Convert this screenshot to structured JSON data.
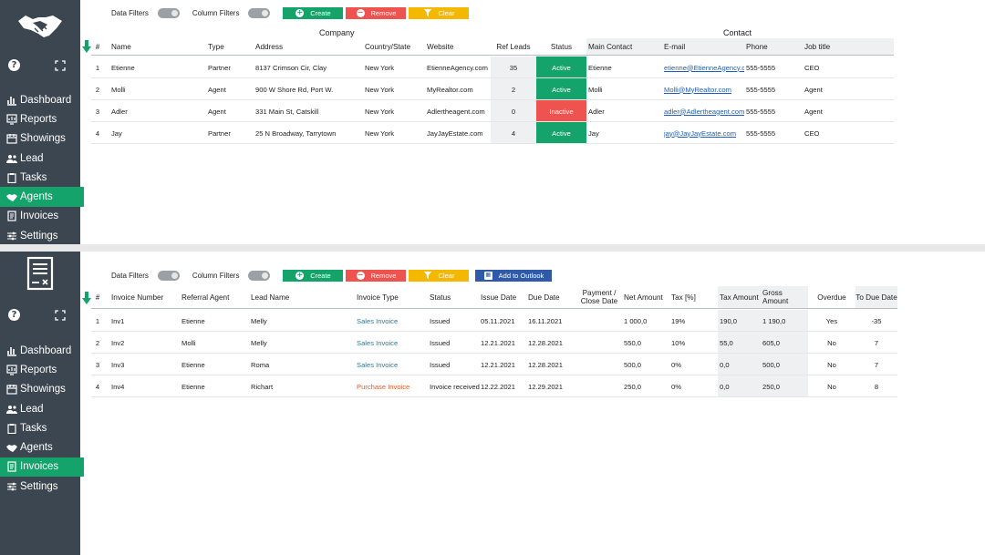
{
  "nav_items": [
    "Dashboard",
    "Reports",
    "Showings",
    "Lead",
    "Tasks",
    "Agents",
    "Invoices",
    "Settings"
  ],
  "icons": {
    "logo_top": "handshake-icon",
    "logo_bottom": "invoice-document-icon",
    "help": "help-icon",
    "expand": "expand-icon",
    "create": "plus-circle-icon",
    "remove": "minus-circle-icon",
    "clear": "filter-icon",
    "outlook": "calendar-icon",
    "scroll_down": "down-arrow-icon"
  },
  "help_glyph": "?",
  "colors": {
    "sidebar": "#3c4650",
    "active_nav": "#13a36b",
    "create": "#13a36b",
    "remove": "#ef5350",
    "clear": "#f5b800",
    "outlook": "#2f5aa8",
    "active_status": "#13a36b",
    "inactive_status": "#ef5350"
  },
  "toolbar": {
    "data_filters": "Data Filters",
    "column_filters": "Column Filters",
    "create": "Create",
    "remove": "Remove",
    "clear": "Clear",
    "add_outlook": "Add to Outlook"
  },
  "agents": {
    "active_nav": "Agents",
    "group_company": "Company",
    "group_contact": "Contact",
    "headers": [
      "#",
      "Name",
      "Type",
      "Address",
      "Country/State",
      "Website",
      "Ref Leads",
      "Status",
      "Main Contact",
      "E-mail",
      "Phone",
      "Job title"
    ],
    "rows": [
      [
        "1",
        "Etienne",
        "Partner",
        "8137 Crimson Cir, Clay",
        "New York",
        "EtienneAgency.com",
        "35",
        "Active",
        "Etienne",
        "etienne@EtienneAgency.co",
        "555-5555",
        "CEO"
      ],
      [
        "2",
        "Molli",
        "Agent",
        "900 W Shore Rd, Port W.",
        "New York",
        "MyRealtor.com",
        "2",
        "Active",
        "Molli",
        "Molli@MyRealtor.com",
        "555-5555",
        "Agent"
      ],
      [
        "3",
        "Adler",
        "Agent",
        "331 Main St, Catskill",
        "New York",
        "Adlertheagent.com",
        "0",
        "Inactive",
        "Adler",
        "adler@Adlertheagent.com",
        "555-5555",
        "Agent"
      ],
      [
        "4",
        "Jay",
        "Partner",
        "25 N Broadway, Tarrytown",
        "New York",
        "JayJayEstate.com",
        "4",
        "Active",
        "Jay",
        "jay@JayJayEstate.com",
        "555-5555",
        "CEO"
      ]
    ]
  },
  "invoices": {
    "active_nav": "Invoices",
    "headers": [
      "#",
      "Invoice Number",
      "Referral Agent",
      "Lead Name",
      "Invoice Type",
      "Status",
      "Issue Date",
      "Due Date",
      "Payment / Close Date",
      "Net Amount",
      "Tax [%]",
      "Tax Amount",
      "Gross Amount",
      "Overdue",
      "To Due Date"
    ],
    "rows": [
      [
        "1",
        "Inv1",
        "Etienne",
        "Melly",
        "Sales Invoice",
        "Issued",
        "05.11.2021",
        "16.11.2021",
        "",
        "1 000,0",
        "19%",
        "190,0",
        "1 190,0",
        "Yes",
        "-35"
      ],
      [
        "2",
        "Inv2",
        "Molli",
        "Melly",
        "Sales Invoice",
        "Issued",
        "12.21.2021",
        "12.28.2021",
        "",
        "550,0",
        "10%",
        "55,0",
        "605,0",
        "No",
        "7"
      ],
      [
        "3",
        "Inv3",
        "Etienne",
        "Roma",
        "Sales Invoice",
        "Issued",
        "12.21.2021",
        "12.28.2021",
        "",
        "500,0",
        "0%",
        "0,0",
        "500,0",
        "No",
        "7"
      ],
      [
        "4",
        "Inv4",
        "Etienne",
        "Richart",
        "Purchase Invoice",
        "Invoice received",
        "12.22.2021",
        "12.29.2021",
        "",
        "250,0",
        "0%",
        "0,0",
        "250,0",
        "No",
        "8"
      ]
    ]
  }
}
